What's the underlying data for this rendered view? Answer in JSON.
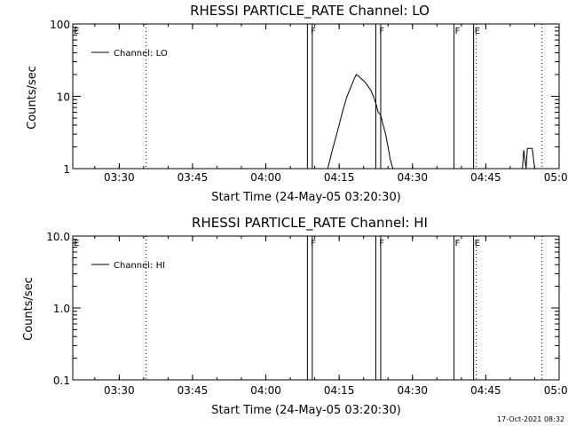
{
  "footer": "17-Oct-2021 08:32",
  "chart_data": [
    {
      "type": "line",
      "title": "RHESSI PARTICLE_RATE Channel: LO",
      "xlabel": "Start Time (24-May-05 03:20:30)",
      "ylabel": "Counts/sec",
      "yscale": "log",
      "ylim": [
        1,
        100
      ],
      "xlim": [
        "03:20:30",
        "05:00:00"
      ],
      "xticks": [
        "03:30",
        "03:45",
        "04:00",
        "04:15",
        "04:30",
        "04:45",
        "05:00"
      ],
      "yticks": [
        "1",
        "10",
        "100"
      ],
      "legend": "top-left",
      "series": [
        {
          "name": "Channel: LO",
          "points": [
            [
              "04:12:40",
              1.0
            ],
            [
              "04:13:30",
              1.7
            ],
            [
              "04:14:30",
              3.0
            ],
            [
              "04:15:30",
              5.5
            ],
            [
              "04:16:30",
              9.5
            ],
            [
              "04:17:30",
              14.0
            ],
            [
              "04:18:00",
              17.0
            ],
            [
              "04:18:30",
              20.0
            ],
            [
              "04:19:00",
              19.0
            ],
            [
              "04:19:30",
              17.5
            ],
            [
              "04:20:00",
              16.5
            ],
            [
              "04:20:30",
              15.0
            ],
            [
              "04:21:00",
              13.5
            ],
            [
              "04:21:30",
              12.0
            ],
            [
              "04:22:00",
              10.0
            ],
            [
              "04:22:30",
              8.0
            ],
            [
              "04:23:00",
              6.0
            ],
            [
              "04:23:30",
              5.5
            ],
            [
              "04:24:00",
              4.0
            ],
            [
              "04:24:30",
              3.0
            ],
            [
              "04:25:00",
              2.0
            ],
            [
              "04:25:30",
              1.3
            ],
            [
              "04:26:00",
              1.0
            ]
          ]
        },
        {
          "name": "Channel: LO",
          "points": [
            [
              "04:52:30",
              1.0
            ],
            [
              "04:52:45",
              1.8
            ],
            [
              "04:53:15",
              1.0
            ],
            [
              "04:53:30",
              1.9
            ],
            [
              "04:54:30",
              1.9
            ],
            [
              "04:55:00",
              1.0
            ]
          ]
        }
      ],
      "flags": [
        {
          "label": "E",
          "time": "03:20:30"
        },
        {
          "label": "F",
          "time": "04:09:00"
        },
        {
          "label": "F",
          "time": "04:23:00"
        },
        {
          "label": "F",
          "time": "04:38:30"
        },
        {
          "label": "E",
          "time": "04:42:30"
        }
      ],
      "vlines": [
        {
          "time": "04:08:30",
          "style": "solid"
        },
        {
          "time": "04:09:30",
          "style": "solid"
        },
        {
          "time": "04:22:30",
          "style": "solid"
        },
        {
          "time": "04:23:30",
          "style": "solid"
        },
        {
          "time": "04:38:30",
          "style": "solid"
        },
        {
          "time": "04:42:30",
          "style": "solid"
        },
        {
          "time": "03:35:30",
          "style": "dotted"
        },
        {
          "time": "04:43:00",
          "style": "dotted"
        },
        {
          "time": "04:56:30",
          "style": "dotted"
        }
      ]
    },
    {
      "type": "line",
      "title": "RHESSI PARTICLE_RATE Channel: HI",
      "xlabel": "Start Time (24-May-05 03:20:30)",
      "ylabel": "Counts/sec",
      "yscale": "log",
      "ylim": [
        0.1,
        10
      ],
      "xlim": [
        "03:20:30",
        "05:00:00"
      ],
      "xticks": [
        "03:30",
        "03:45",
        "04:00",
        "04:15",
        "04:30",
        "04:45",
        "05:00"
      ],
      "yticks": [
        "0.1",
        "1.0",
        "10.0"
      ],
      "legend": "top-left",
      "series": [
        {
          "name": "Channel: HI",
          "points": []
        }
      ],
      "flags": [
        {
          "label": "E",
          "time": "03:20:30"
        },
        {
          "label": "F",
          "time": "04:09:00"
        },
        {
          "label": "F",
          "time": "04:23:00"
        },
        {
          "label": "F",
          "time": "04:38:30"
        },
        {
          "label": "E",
          "time": "04:42:30"
        }
      ],
      "vlines": [
        {
          "time": "04:08:30",
          "style": "solid"
        },
        {
          "time": "04:09:30",
          "style": "solid"
        },
        {
          "time": "04:22:30",
          "style": "solid"
        },
        {
          "time": "04:23:30",
          "style": "solid"
        },
        {
          "time": "04:38:30",
          "style": "solid"
        },
        {
          "time": "04:42:30",
          "style": "solid"
        },
        {
          "time": "03:35:30",
          "style": "dotted"
        },
        {
          "time": "04:43:00",
          "style": "dotted"
        },
        {
          "time": "04:56:30",
          "style": "dotted"
        }
      ]
    }
  ]
}
